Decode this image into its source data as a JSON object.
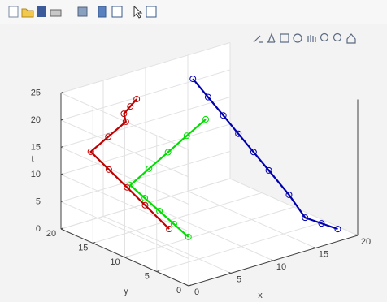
{
  "chart_data": {
    "type": "line3d",
    "xlabel": "x",
    "ylabel": "y",
    "zlabel": "t",
    "xlim": [
      0,
      20
    ],
    "xticks": [
      0,
      5,
      10,
      15,
      20
    ],
    "ylim": [
      0,
      20
    ],
    "yticks": [
      0,
      5,
      10,
      15,
      20
    ],
    "zlim": [
      0,
      25
    ],
    "zticks": [
      0,
      5,
      10,
      15,
      20,
      25
    ],
    "grid": true,
    "series": [
      {
        "color": "#c00000",
        "x": [
          5.26,
          5.37,
          5.48,
          6.09,
          4.62,
          3.15,
          4.19,
          5.24,
          6.28,
          7.67
        ],
        "y": [
          15.1,
          16.25,
          17.4,
          17.9,
          18.7,
          19.5,
          18.05,
          16.59,
          15.14,
          13.2
        ],
        "t": [
          24,
          22,
          20,
          18,
          15.5,
          13,
          10,
          7,
          4,
          0
        ]
      },
      {
        "color": "#00dd00",
        "x": [
          10.4,
          8.6,
          6.81,
          5.0,
          3.22,
          4.35,
          5.49,
          6.62,
          7.75
        ],
        "y": [
          11.1,
          11.68,
          12.25,
          12.83,
          13.4,
          12.63,
          11.85,
          11.08,
          10.3
        ],
        "t": [
          20,
          17.5,
          15,
          12.5,
          10,
          7.5,
          5,
          2.5,
          0
        ]
      },
      {
        "color": "#0000b0",
        "x": [
          11.6,
          12.36,
          13.12,
          13.87,
          14.63,
          15.39,
          16.4,
          16.5,
          18.05,
          19.6
        ],
        "y": [
          14.7,
          13.33,
          11.95,
          10.58,
          9.21,
          7.83,
          6.0,
          3.6,
          3.1,
          2.6
        ],
        "t": [
          25,
          22,
          19,
          16,
          13,
          10,
          6,
          3,
          1.5,
          0
        ]
      }
    ]
  }
}
